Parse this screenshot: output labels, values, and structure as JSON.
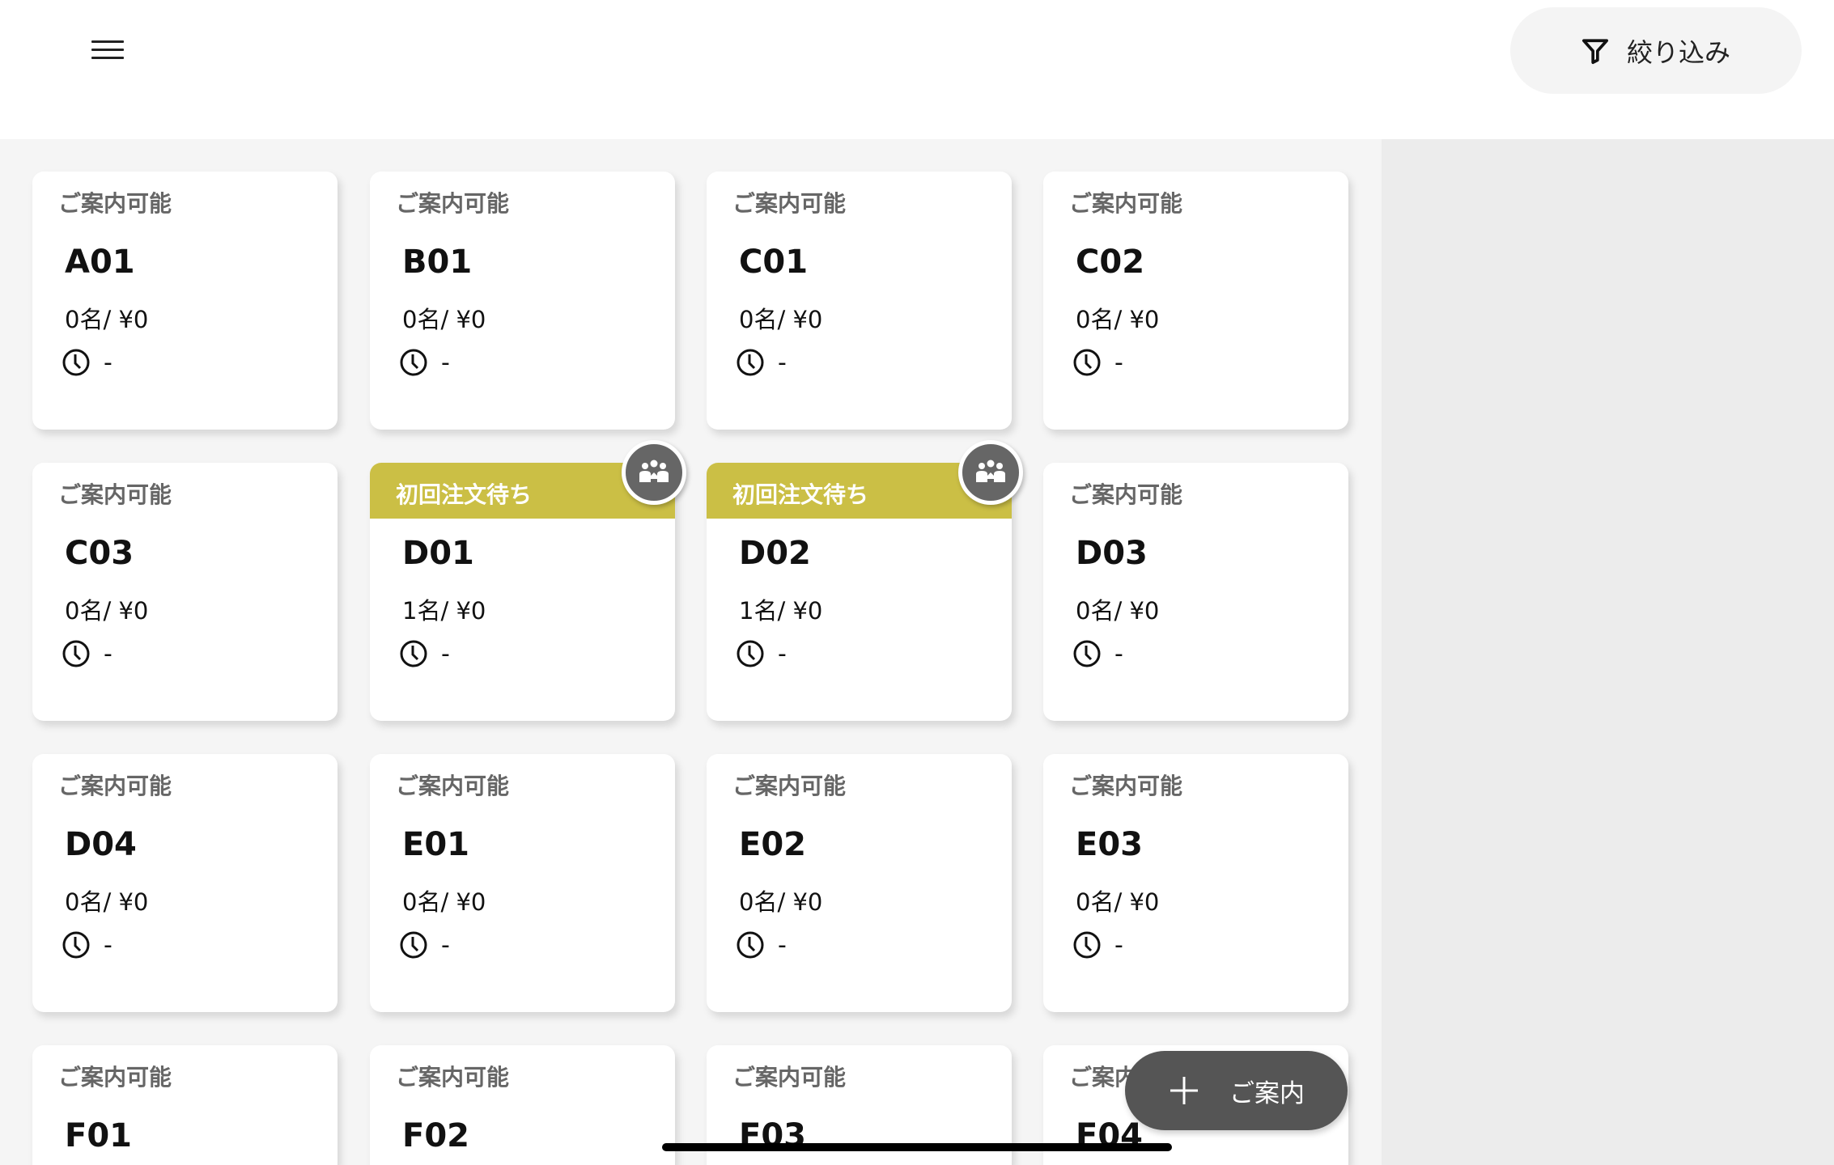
{
  "header": {
    "menu_icon": "hamburger-icon",
    "filter_label": "絞り込み",
    "filter_icon": "filter-icon"
  },
  "colors": {
    "waiting_banner": "#cbbf45",
    "badge": "#666666",
    "fab": "#555555"
  },
  "tables": [
    {
      "status": "ご案内可能",
      "name": "A01",
      "guests_amount": "0名/ ¥0",
      "time": "-",
      "waiting": false
    },
    {
      "status": "ご案内可能",
      "name": "B01",
      "guests_amount": "0名/ ¥0",
      "time": "-",
      "waiting": false
    },
    {
      "status": "ご案内可能",
      "name": "C01",
      "guests_amount": "0名/ ¥0",
      "time": "-",
      "waiting": false
    },
    {
      "status": "ご案内可能",
      "name": "C02",
      "guests_amount": "0名/ ¥0",
      "time": "-",
      "waiting": false
    },
    {
      "status": "ご案内可能",
      "name": "C03",
      "guests_amount": "0名/ ¥0",
      "time": "-",
      "waiting": false
    },
    {
      "status": "初回注文待ち",
      "name": "D01",
      "guests_amount": "1名/ ¥0",
      "time": "-",
      "waiting": true
    },
    {
      "status": "初回注文待ち",
      "name": "D02",
      "guests_amount": "1名/ ¥0",
      "time": "-",
      "waiting": true
    },
    {
      "status": "ご案内可能",
      "name": "D03",
      "guests_amount": "0名/ ¥0",
      "time": "-",
      "waiting": false
    },
    {
      "status": "ご案内可能",
      "name": "D04",
      "guests_amount": "0名/ ¥0",
      "time": "-",
      "waiting": false
    },
    {
      "status": "ご案内可能",
      "name": "E01",
      "guests_amount": "0名/ ¥0",
      "time": "-",
      "waiting": false
    },
    {
      "status": "ご案内可能",
      "name": "E02",
      "guests_amount": "0名/ ¥0",
      "time": "-",
      "waiting": false
    },
    {
      "status": "ご案内可能",
      "name": "E03",
      "guests_amount": "0名/ ¥0",
      "time": "-",
      "waiting": false
    },
    {
      "status": "ご案内可能",
      "name": "F01",
      "guests_amount": "",
      "time": "",
      "waiting": false
    },
    {
      "status": "ご案内可能",
      "name": "F02",
      "guests_amount": "",
      "time": "",
      "waiting": false
    },
    {
      "status": "ご案内可能",
      "name": "F03",
      "guests_amount": "",
      "time": "",
      "waiting": false
    },
    {
      "status": "ご案内可能",
      "name": "F04",
      "guests_amount": "",
      "time": "",
      "waiting": false
    }
  ],
  "fab": {
    "label": "ご案内",
    "icon": "plus-icon"
  }
}
